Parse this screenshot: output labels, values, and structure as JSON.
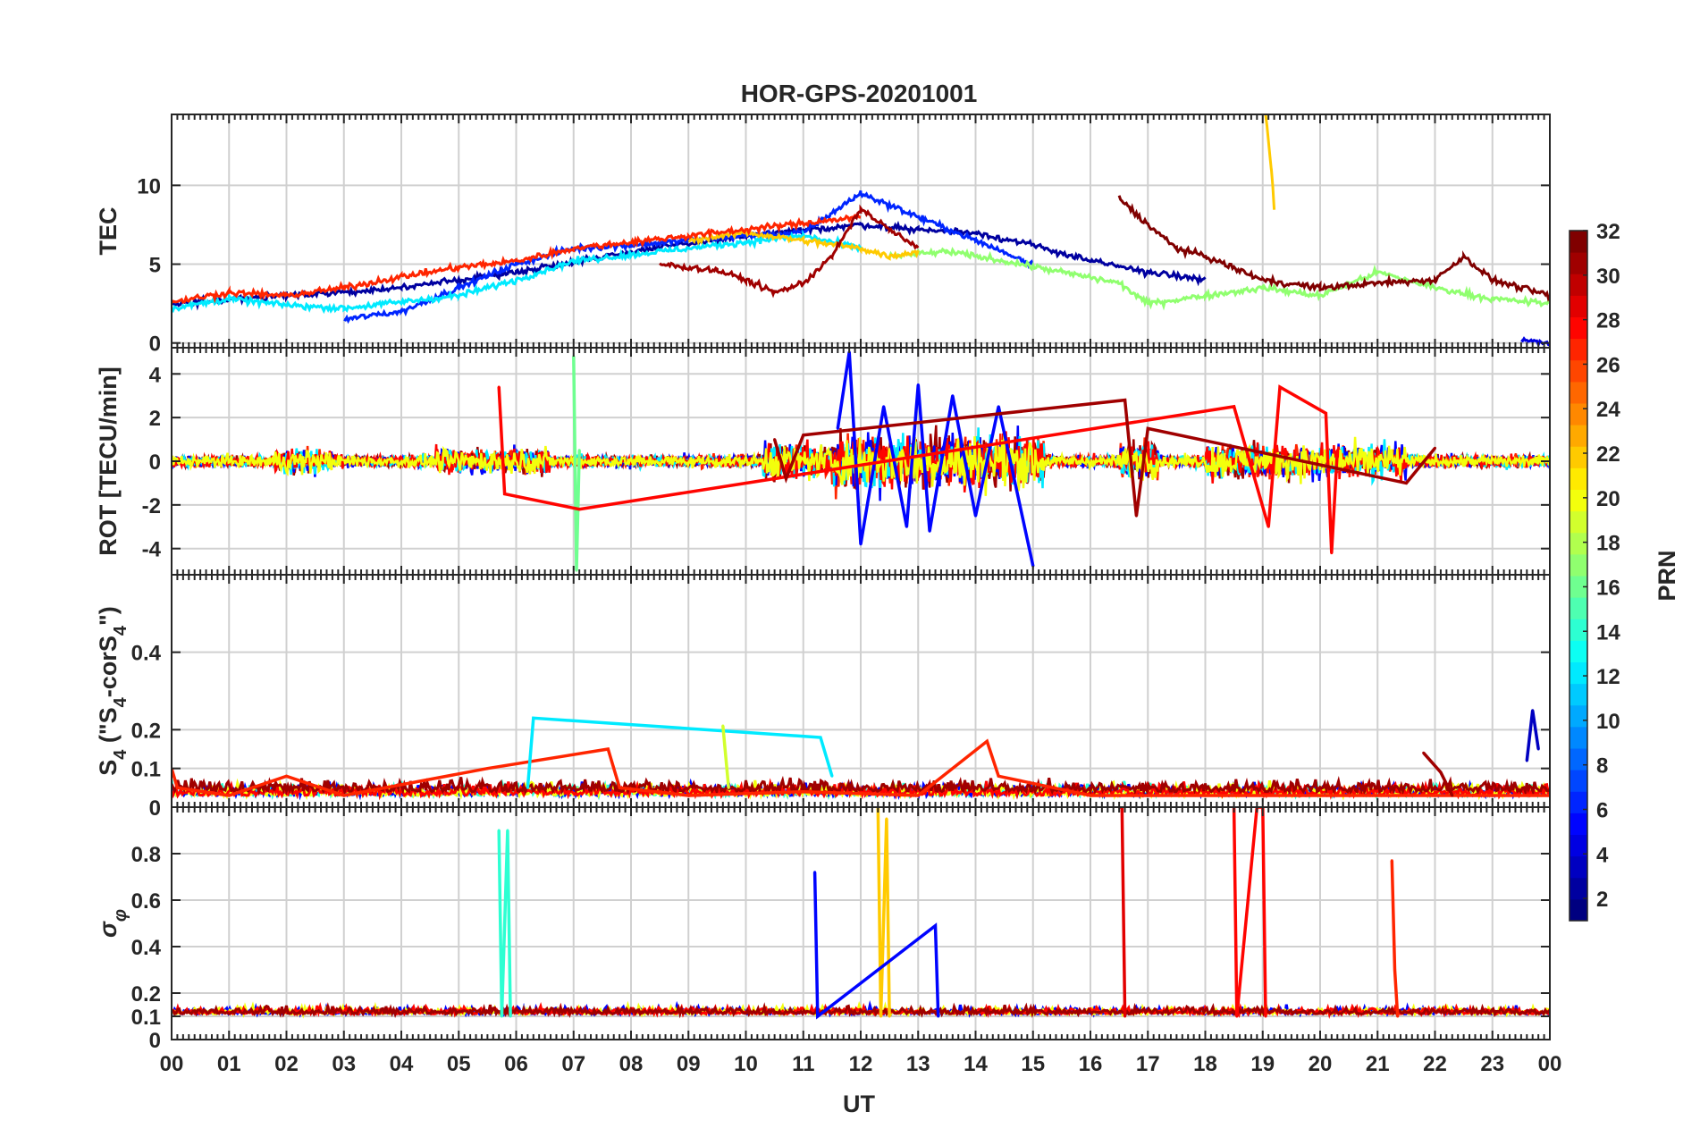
{
  "chart_data": {
    "type": "line",
    "title": "HOR-GPS-20201001",
    "xlabel": "UT",
    "x_ticks": [
      "00",
      "01",
      "02",
      "03",
      "04",
      "05",
      "06",
      "07",
      "08",
      "09",
      "10",
      "11",
      "12",
      "13",
      "14",
      "15",
      "16",
      "17",
      "18",
      "19",
      "20",
      "21",
      "22",
      "23",
      "00"
    ],
    "xlim": [
      0,
      24
    ],
    "grid": true,
    "panels": [
      {
        "id": "tec",
        "ylabel": "TEC",
        "ylim": [
          -0.3,
          14.5
        ],
        "yticks": [
          0,
          5,
          10
        ],
        "ytick_labels": [
          "0",
          "5",
          "10"
        ],
        "series": [
          {
            "name": "PRN 2",
            "prn": 2,
            "x": [
              0,
              2,
              4,
              6,
              8,
              10,
              12,
              13,
              14,
              15,
              16,
              17,
              18
            ],
            "y": [
              2.5,
              3,
              3.5,
              4.5,
              5.8,
              6.8,
              7.5,
              7.2,
              7,
              6.2,
              5.2,
              4.5,
              4
            ]
          },
          {
            "name": "PRN 6",
            "prn": 6,
            "x": [
              3,
              4,
              5,
              6,
              7,
              8,
              9,
              10,
              11,
              12,
              13,
              14,
              15
            ],
            "y": [
              1.5,
              2,
              3.5,
              5,
              6,
              6.2,
              6.5,
              6.8,
              7,
              9.5,
              8,
              6.5,
              5
            ]
          },
          {
            "name": "PRN 12",
            "prn": 12,
            "x": [
              0,
              1,
              2,
              3,
              5,
              6,
              7,
              8,
              9,
              10,
              11,
              12
            ],
            "y": [
              2.2,
              2.8,
              2.4,
              2.2,
              3,
              4,
              5.2,
              5.6,
              6,
              6.4,
              6.8,
              6
            ]
          },
          {
            "name": "PRN 17",
            "prn": 17,
            "x": [
              12.5,
              13.5,
              14.5,
              15.5,
              16.5,
              17,
              18,
              19,
              20,
              21,
              22,
              23,
              24
            ],
            "y": [
              5.5,
              5.8,
              5.2,
              4.5,
              3.8,
              2.5,
              3,
              3.5,
              3,
              4.5,
              3.5,
              2.8,
              2.5
            ]
          },
          {
            "name": "PRN 22",
            "prn": 22,
            "x": [
              9,
              10,
              11,
              12,
              12.5,
              13
            ],
            "y": [
              6.5,
              7,
              6.5,
              6,
              5.5,
              5.8
            ]
          },
          {
            "name": "PRN 27",
            "prn": 27,
            "x": [
              0,
              1,
              2,
              3,
              4,
              5,
              6,
              7,
              8,
              9,
              10,
              11,
              12
            ],
            "y": [
              2.6,
              3.2,
              3,
              3.5,
              4.2,
              4.8,
              5.2,
              6,
              6.4,
              6.8,
              7.2,
              7.6,
              8
            ]
          },
          {
            "name": "PRN 31",
            "prn": 31,
            "x": [
              8.5,
              9.5,
              10,
              10.5,
              11,
              11.5,
              12,
              12.5,
              13
            ],
            "y": [
              5,
              4.6,
              4,
              3.2,
              3.8,
              5.5,
              8.5,
              7.2,
              6
            ]
          },
          {
            "name": "PRN 32",
            "prn": 32,
            "x": [
              16.5,
              17,
              17.5,
              18,
              19,
              20,
              21,
              22,
              22.5,
              23,
              24
            ],
            "y": [
              9.2,
              7.5,
              6,
              5.5,
              4,
              3.5,
              3.8,
              4,
              5.5,
              4,
              3
            ]
          },
          {
            "name": "PRN 22 (19 UT)",
            "prn": 22,
            "x": [
              19.05,
              19.15,
              19.2
            ],
            "y": [
              14.5,
              11,
              8.5
            ]
          },
          {
            "name": "PRN 4 (23.5 UT)",
            "prn": 4,
            "x": [
              23.5,
              24
            ],
            "y": [
              0.2,
              0.0
            ]
          }
        ]
      },
      {
        "id": "rot",
        "ylabel": "ROT [TECU/min]",
        "ylim": [
          -5.2,
          5.2
        ],
        "yticks": [
          -4,
          -2,
          0,
          2,
          4
        ],
        "ytick_labels": [
          "-4",
          "-2",
          "0",
          "2",
          "4"
        ],
        "series": [
          {
            "name": "PRN 5",
            "prn": 5,
            "x": [
              11.6,
              11.8,
              12,
              12.4,
              12.8,
              13,
              13.2,
              13.6,
              14,
              14.4,
              15
            ],
            "y": [
              1.5,
              5.0,
              -3.8,
              2.5,
              -3.0,
              3.5,
              -3.2,
              3.0,
              -2.5,
              2.5,
              -4.8
            ]
          },
          {
            "name": "PRN 16",
            "prn": 16,
            "x": [
              7.0,
              7.05,
              7.1
            ],
            "y": [
              4.8,
              -5.0,
              0.5
            ]
          },
          {
            "name": "PRN 28",
            "prn": 28,
            "x": [
              5.7,
              5.8,
              7.1,
              18.5,
              19.1,
              19.3,
              20.1,
              20.2,
              20.3
            ],
            "y": [
              3.4,
              -1.5,
              -2.2,
              2.5,
              -3.0,
              3.4,
              2.2,
              -4.2,
              0.5
            ]
          },
          {
            "name": "PRN 31",
            "prn": 31,
            "x": [
              10.5,
              10.7,
              11,
              16.6,
              16.8,
              17,
              21.5,
              22
            ],
            "y": [
              1.0,
              -0.8,
              1.2,
              2.8,
              -2.5,
              1.5,
              -1.0,
              0.6
            ]
          }
        ]
      },
      {
        "id": "s4",
        "ylabel": "S4 (\"S4-corS4\")",
        "ylim": [
          0,
          0.6
        ],
        "yticks": [
          0,
          0.1,
          0.2,
          0.4
        ],
        "ytick_labels": [
          "0",
          "0.1",
          "0.2",
          "0.4"
        ],
        "series": [
          {
            "name": "PRN 27",
            "prn": 27,
            "x": [
              0,
              0.1,
              1,
              2,
              3,
              5.5,
              7.6,
              7.8,
              9,
              11,
              13,
              14.2,
              14.4,
              16,
              24
            ],
            "y": [
              0.1,
              0.05,
              0.03,
              0.08,
              0.03,
              0.1,
              0.15,
              0.05,
              0.03,
              0.04,
              0.03,
              0.17,
              0.08,
              0.03,
              0.03
            ]
          },
          {
            "name": "PRN 12",
            "prn": 12,
            "x": [
              6.2,
              6.3,
              11.3,
              11.5
            ],
            "y": [
              0.05,
              0.23,
              0.18,
              0.08
            ]
          },
          {
            "name": "PRN 19",
            "prn": 19,
            "x": [
              9.6,
              9.7
            ],
            "y": [
              0.21,
              0.05
            ]
          },
          {
            "name": "PRN 3",
            "prn": 3,
            "x": [
              23.6,
              23.7,
              23.8
            ],
            "y": [
              0.12,
              0.25,
              0.15
            ]
          },
          {
            "name": "PRN 31",
            "prn": 31,
            "x": [
              21.8,
              22.1,
              22.3
            ],
            "y": [
              0.14,
              0.09,
              0.03
            ]
          }
        ]
      },
      {
        "id": "sigma_phi",
        "ylabel": "σφ",
        "ylim": [
          0,
          1.0
        ],
        "yticks": [
          0,
          0.1,
          0.2,
          0.4,
          0.6,
          0.8
        ],
        "ytick_labels": [
          "0",
          "0.1",
          "0.2",
          "0.4",
          "0.6",
          "0.8"
        ],
        "series": [
          {
            "name": "PRN 14",
            "prn": 14,
            "x": [
              5.7,
              5.75,
              5.85,
              5.9
            ],
            "y": [
              0.9,
              0.1,
              0.9,
              0.1
            ]
          },
          {
            "name": "PRN 22",
            "prn": 22,
            "x": [
              12.3,
              12.35,
              12.45,
              12.5
            ],
            "y": [
              1.0,
              0.1,
              0.95,
              0.1
            ]
          },
          {
            "name": "PRN 29",
            "prn": 29,
            "x": [
              16.5,
              16.55,
              16.6
            ],
            "y": [
              1.0,
              1.0,
              0.1
            ]
          },
          {
            "name": "PRN 28",
            "prn": 28,
            "x": [
              18.5,
              18.55,
              18.9,
              19.0,
              19.05
            ],
            "y": [
              1.0,
              0.1,
              1.0,
              1.0,
              0.1
            ]
          },
          {
            "name": "PRN 5",
            "prn": 5,
            "x": [
              11.2,
              11.25,
              13.3,
              13.35
            ],
            "y": [
              0.72,
              0.1,
              0.49,
              0.1
            ]
          },
          {
            "name": "PRN 27",
            "prn": 27,
            "x": [
              21.25,
              21.3,
              21.35
            ],
            "y": [
              0.77,
              0.3,
              0.1
            ]
          }
        ]
      }
    ],
    "colorbar": {
      "label": "PRN",
      "range": [
        1,
        32
      ],
      "ticks": [
        2,
        4,
        6,
        8,
        10,
        12,
        14,
        16,
        18,
        20,
        22,
        24,
        26,
        28,
        30,
        32
      ],
      "tick_labels": [
        "2",
        "4",
        "6",
        "8",
        "10",
        "12",
        "14",
        "16",
        "18",
        "20",
        "22",
        "24",
        "26",
        "28",
        "30",
        "32"
      ],
      "colormap": "jet"
    }
  }
}
